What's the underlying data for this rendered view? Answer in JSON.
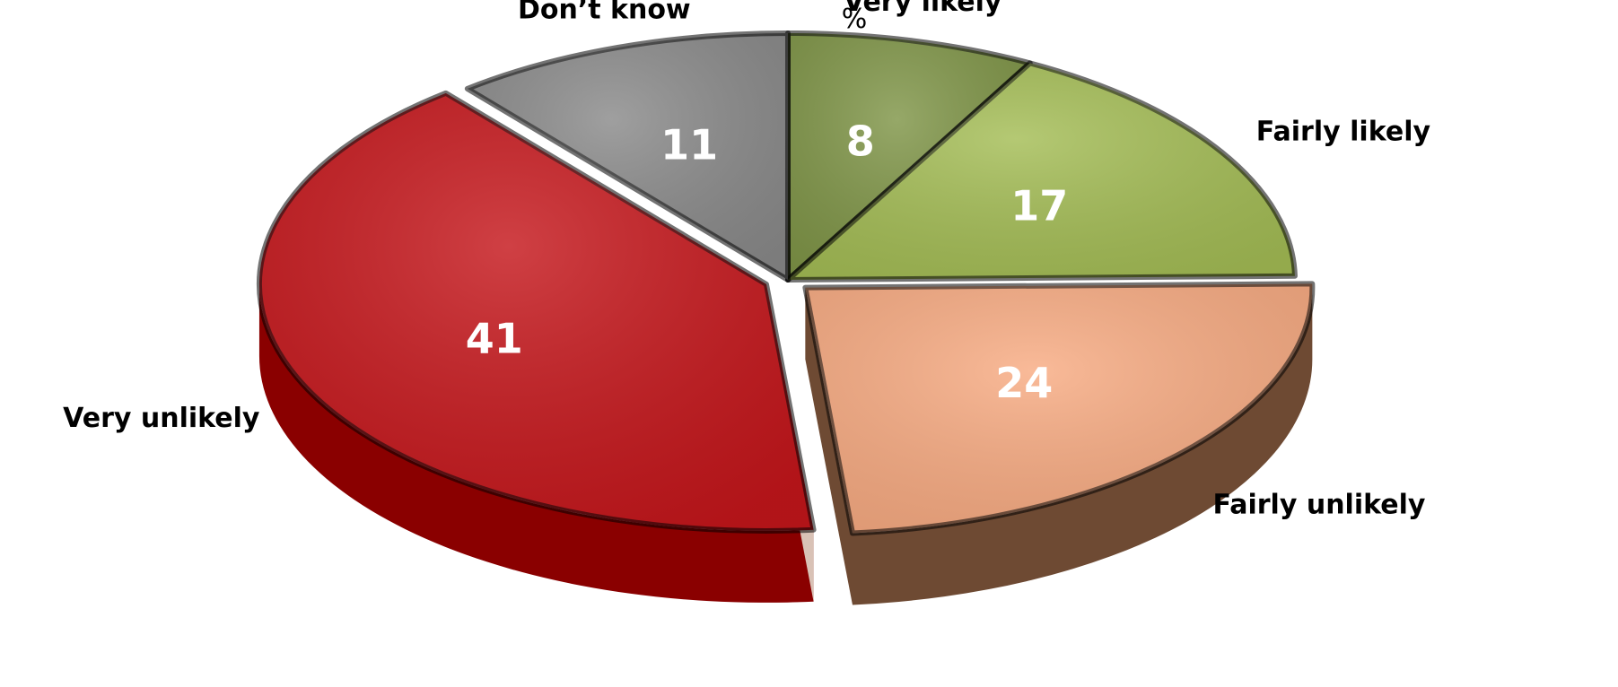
{
  "chart_data": {
    "type": "pie",
    "unit": "%",
    "categories": [
      "Very likely",
      "Fairly likely",
      "Fairly unlikely",
      "Very unlikely",
      "Don’t know"
    ],
    "values": [
      8,
      17,
      24,
      41,
      11
    ],
    "colors": [
      "#7f9547",
      "#a4bd55",
      "#f8ab82",
      "#c5161b",
      "#8a8a8a"
    ],
    "side_colors": [
      "#5b6c30",
      "#7b8f3c",
      "#6e4a33",
      "#8a0000",
      "#5c5c5c"
    ],
    "exploded": [
      "Fairly unlikely",
      "Very unlikely"
    ]
  }
}
